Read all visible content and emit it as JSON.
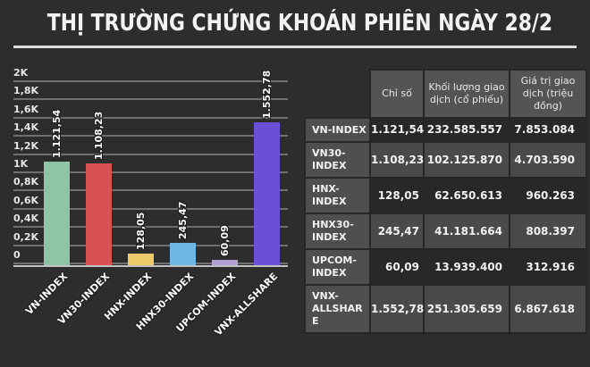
{
  "title": "THỊ TRƯỜNG CHỨNG KHOÁN PHIÊN NGÀY 28/2",
  "colors": {
    "background": "#2d2d2d",
    "title_text": "#f3f3f3",
    "underline": "#dcdcdc",
    "gridline": "#6f6f6f",
    "axis_line": "#c2c2c2",
    "tick_text": "#e6e6e6",
    "bar_label_text": "#ffffff",
    "table_header_bg": "#545454",
    "table_row_label_bg": "#4f4f4f",
    "table_row_dark_bg": "#282828",
    "table_row_light_bg": "#4a4a4a",
    "table_border": "#262626",
    "table_header_text": "#e8e8e8",
    "table_cell_text": "#f2f2f2"
  },
  "chart_data": {
    "type": "bar",
    "title": "THỊ TRƯỜNG CHỨNG KHOÁN PHIÊN NGÀY 28/2",
    "categories": [
      "VN-INDEX",
      "VN30-INDEX",
      "HNX-INDEX",
      "HNX30-INDEX",
      "UPCOM-INDEX",
      "VNX-ALLSHARE"
    ],
    "values": [
      1121.54,
      1108.23,
      128.05,
      245.47,
      60.09,
      1552.78
    ],
    "value_labels": [
      "1.121,54",
      "1.108,23",
      "128,05",
      "245,47",
      "60,09",
      "1.552,78"
    ],
    "bar_colors": [
      "#8ec6a5",
      "#d95151",
      "#eec96a",
      "#6fb8e4",
      "#b5a0d6",
      "#6a50d6"
    ],
    "xlabel": "",
    "ylabel": "",
    "ylim": [
      0,
      2000
    ],
    "ytick_values": [
      2000,
      1800,
      1600,
      1400,
      1200,
      1000,
      800,
      600,
      400,
      200,
      0
    ],
    "ytick_labels": [
      "2K",
      "1,8K",
      "1,6K",
      "1,4K",
      "1,2K",
      "1K",
      "0,8K",
      "0,6K",
      "0,4K",
      "0,2K",
      "0"
    ],
    "grid": true,
    "legend": false,
    "value_label_rotation": -90,
    "xtick_rotation": -45
  },
  "table": {
    "headers": [
      "Chỉ số",
      "Khối lượng giao dịch (cổ phiếu)",
      "Giá trị giao dịch (triệu đồng)"
    ],
    "rows": [
      {
        "label": "VN-INDEX",
        "values": [
          "1.121,54",
          "232.585.557",
          "7.853.084"
        ]
      },
      {
        "label": "VN30-INDEX",
        "values": [
          "1.108,23",
          "102.125.870",
          "4.703.590"
        ]
      },
      {
        "label": "HNX-INDEX",
        "values": [
          "128,05",
          "62.650.613",
          "960.263"
        ]
      },
      {
        "label": "HNX30-INDEX",
        "values": [
          "245,47",
          "41.181.664",
          "808.397"
        ]
      },
      {
        "label": "UPCOM-INDEX",
        "values": [
          "60,09",
          "13.939.400",
          "312.916"
        ]
      },
      {
        "label": "VNX-ALLSHARE",
        "values": [
          "1.552,78",
          "251.305.659",
          "6.867.618"
        ]
      }
    ]
  }
}
